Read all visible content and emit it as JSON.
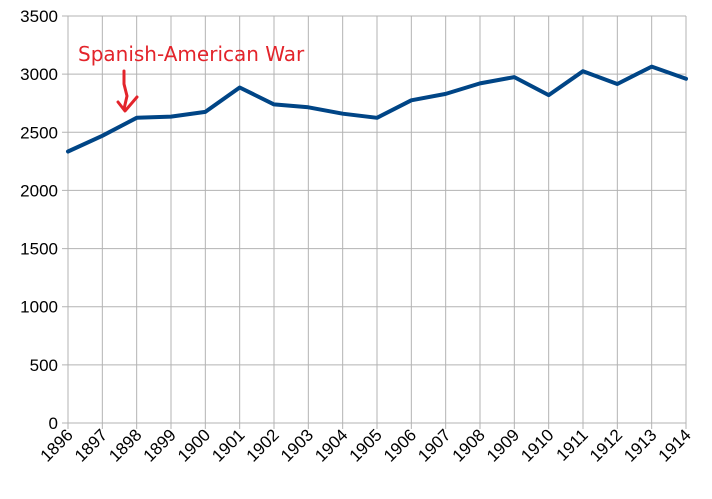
{
  "chart_data": {
    "type": "line",
    "title": "",
    "xlabel": "",
    "ylabel": "",
    "x": [
      "1896",
      "1897",
      "1898",
      "1899",
      "1900",
      "1901",
      "1902",
      "1903",
      "1904",
      "1905",
      "1906",
      "1907",
      "1908",
      "1909",
      "1910",
      "1911",
      "1912",
      "1913",
      "1914"
    ],
    "y_ticks": [
      "0",
      "500",
      "1000",
      "1500",
      "2000",
      "2500",
      "3000",
      "3500"
    ],
    "series": [
      {
        "values": [
          2335,
          2470,
          2625,
          2635,
          2675,
          2885,
          2740,
          2715,
          2660,
          2625,
          2775,
          2830,
          2920,
          2975,
          2820,
          3025,
          2915,
          3065,
          2960
        ]
      }
    ],
    "ylim": [
      0,
      3500
    ],
    "grid": true,
    "legend": "none",
    "colors": {
      "line": "#004586",
      "grid": "#b3b3b3",
      "annotation": "#e3242b"
    },
    "annotations": [
      {
        "text": "Spanish-American War",
        "x": "1898"
      }
    ]
  }
}
